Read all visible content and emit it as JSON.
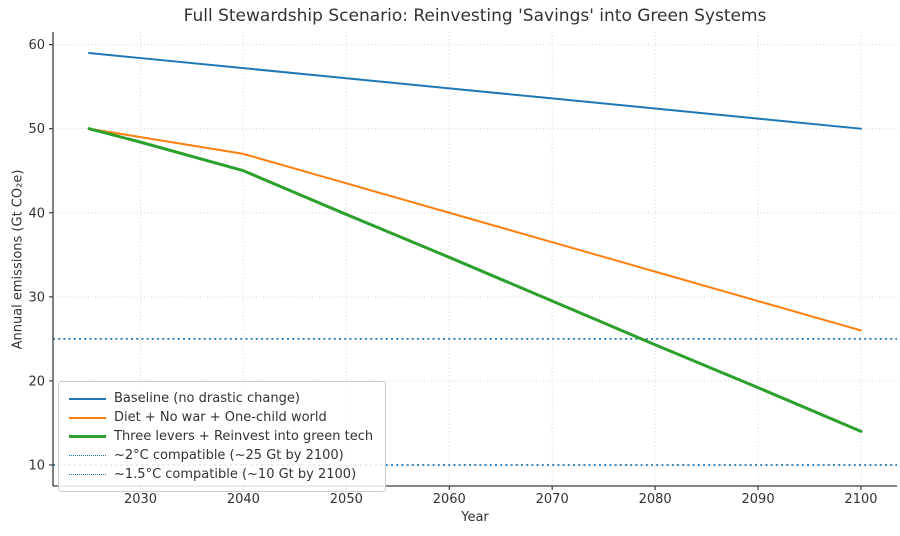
{
  "title": "Full Stewardship Scenario: Reinvesting 'Savings' into Green Systems",
  "chart_data": {
    "type": "line",
    "title": "Full Stewardship Scenario: Reinvesting 'Savings' into Green Systems",
    "xlabel": "Year",
    "ylabel": "Annual emissions (Gt CO₂e)",
    "xlim": [
      2021.5,
      2103.5
    ],
    "ylim": [
      7.5,
      61.5
    ],
    "x_ticks": [
      2030,
      2040,
      2050,
      2060,
      2070,
      2080,
      2090,
      2100
    ],
    "y_ticks": [
      10,
      20,
      30,
      40,
      50,
      60
    ],
    "grid": true,
    "legend_position": "lower-left",
    "x": [
      2025,
      2030,
      2040,
      2050,
      2060,
      2070,
      2080,
      2090,
      2100
    ],
    "series": [
      {
        "name": "Baseline (no drastic change)",
        "color": "#1f77b4",
        "style": "solid",
        "width": 2,
        "values": [
          59,
          58.4,
          57.2,
          56,
          54.8,
          53.6,
          52.4,
          51.2,
          50
        ]
      },
      {
        "name": "Diet + No war + One-child world",
        "color": "#ff7f0e",
        "style": "solid",
        "width": 2,
        "values": [
          50,
          49,
          47,
          43.5,
          40,
          36.5,
          33,
          29.5,
          26
        ]
      },
      {
        "name": "Three levers + Reinvest into green tech",
        "color": "#2ca02c",
        "style": "solid",
        "width": 3,
        "values": [
          50,
          48.4,
          45,
          39.8,
          34.7,
          29.5,
          24.3,
          19.2,
          14
        ]
      }
    ],
    "reference_lines": [
      {
        "name": "~2°C compatible (~25 Gt by 2100)",
        "value": 25,
        "color": "#1f77b4",
        "style": "dotted",
        "width": 1.8
      },
      {
        "name": "~1.5°C compatible (~10 Gt by 2100)",
        "value": 10,
        "color": "#1f77b4",
        "style": "dotted",
        "width": 1.8
      }
    ]
  },
  "colors": {
    "grid": "#c9c9c9",
    "spine": "#3b3b3b",
    "tick_text": "#333333"
  }
}
